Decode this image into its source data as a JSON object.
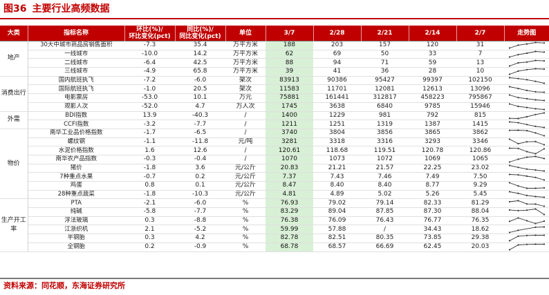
{
  "figure": {
    "number": "图36",
    "title": "主要行业高频数据"
  },
  "source": "资料来源：同花顺，东海证券研究所",
  "colors": {
    "brand_red": "#c00000",
    "highlight": "#d8f0d6",
    "spark_line": "#333333"
  },
  "headers": {
    "category": "大类",
    "name": "指标名称",
    "mom": [
      "环比(%)/",
      "环比变化(pct)"
    ],
    "yoy": [
      "同比(%)/",
      "同比变化(pct)"
    ],
    "unit": "单位",
    "dates": [
      "3/7",
      "2/28",
      "2/21",
      "2/14",
      "2/7"
    ],
    "trend": "走势图"
  },
  "groups": [
    {
      "category": "地产",
      "rows": [
        {
          "name": "30大中城市商品房销售面积",
          "mom": "-7.3",
          "yoy": "35.4",
          "unit": "万平方米",
          "values": [
            "188",
            "203",
            "157",
            "120",
            "31"
          ],
          "hl": [
            true,
            false,
            false,
            false,
            false
          ],
          "trend": [
            31,
            120,
            157,
            203,
            188
          ]
        },
        {
          "name": "一线城市",
          "mom": "-10.0",
          "yoy": "14.2",
          "unit": "万平方米",
          "values": [
            "62",
            "69",
            "50",
            "33",
            "7"
          ],
          "hl": [
            true,
            false,
            false,
            false,
            false
          ],
          "trend": [
            7,
            33,
            50,
            69,
            62
          ]
        },
        {
          "name": "二线城市",
          "mom": "-6.4",
          "yoy": "42.5",
          "unit": "万平方米",
          "values": [
            "88",
            "94",
            "71",
            "59",
            "13"
          ],
          "hl": [
            true,
            false,
            false,
            false,
            false
          ],
          "trend": [
            13,
            59,
            71,
            94,
            88
          ]
        },
        {
          "name": "三线城市",
          "mom": "-4.9",
          "yoy": "65.8",
          "unit": "万平方米",
          "values": [
            "39",
            "41",
            "36",
            "28",
            "10"
          ],
          "hl": [
            true,
            false,
            false,
            false,
            false
          ],
          "trend": [
            10,
            28,
            36,
            41,
            39
          ]
        }
      ]
    },
    {
      "category": "消费出行",
      "rows": [
        {
          "name": "国内航班执飞",
          "mom": "-7.2",
          "yoy": "-6.0",
          "unit": "架次",
          "values": [
            "83913",
            "90386",
            "95427",
            "99397",
            "102150"
          ],
          "hl": [
            true,
            false,
            false,
            false,
            false
          ],
          "trend": [
            102150,
            99397,
            95427,
            90386,
            83913
          ]
        },
        {
          "name": "国际航班执飞",
          "mom": "-1.0",
          "yoy": "20.5",
          "unit": "架次",
          "values": [
            "11583",
            "11701",
            "12081",
            "12613",
            "13096"
          ],
          "hl": [
            true,
            false,
            false,
            false,
            false
          ],
          "trend": [
            13096,
            12613,
            12081,
            11701,
            11583
          ]
        },
        {
          "name": "电影票房",
          "mom": "-53.0",
          "yoy": "10.1",
          "unit": "万元",
          "values": [
            "75881",
            "161441",
            "312817",
            "458223",
            "795867"
          ],
          "hl": [
            true,
            false,
            false,
            false,
            false
          ],
          "trend": [
            795867,
            458223,
            312817,
            161441,
            75881
          ]
        },
        {
          "name": "观影人次",
          "mom": "-52.0",
          "yoy": "4.7",
          "unit": "万人次",
          "values": [
            "1745",
            "3638",
            "6840",
            "9785",
            "15946"
          ],
          "hl": [
            true,
            false,
            false,
            false,
            false
          ],
          "trend": [
            15946,
            9785,
            6840,
            3638,
            1745
          ]
        }
      ]
    },
    {
      "category": "外需",
      "rows": [
        {
          "name": "BDI指数",
          "mom": "13.9",
          "yoy": "-40.3",
          "unit": "/",
          "values": [
            "1400",
            "1229",
            "981",
            "792",
            "815"
          ],
          "hl": [
            true,
            false,
            false,
            false,
            false
          ],
          "trend": [
            815,
            792,
            981,
            1229,
            1400
          ]
        },
        {
          "name": "CCFI指数",
          "mom": "-3.2",
          "yoy": "-7.7",
          "unit": "/",
          "values": [
            "1211",
            "1251",
            "1319",
            "1387",
            "1415"
          ],
          "hl": [
            true,
            false,
            false,
            false,
            false
          ],
          "trend": [
            1415,
            1387,
            1319,
            1251,
            1211
          ]
        }
      ]
    },
    {
      "category": "物价",
      "rows": [
        {
          "name": "南华工业品价格指数",
          "mom": "-1.7",
          "yoy": "-6.5",
          "unit": "/",
          "values": [
            "3740",
            "3804",
            "3856",
            "3865",
            "3862"
          ],
          "hl": [
            true,
            false,
            false,
            false,
            false
          ],
          "trend": [
            3862,
            3865,
            3856,
            3804,
            3740
          ]
        },
        {
          "name": "螺纹钢",
          "mom": "-1.1",
          "yoy": "-11.8",
          "unit": "元/吨",
          "values": [
            "3281",
            "3318",
            "3316",
            "3293",
            "3346"
          ],
          "hl": [
            true,
            false,
            false,
            false,
            false
          ],
          "trend": [
            3346,
            3293,
            3316,
            3318,
            3281
          ]
        },
        {
          "name": "水泥价格指数",
          "mom": "1.6",
          "yoy": "12.6",
          "unit": "/",
          "values": [
            "120.61",
            "118.68",
            "119.51",
            "120.78",
            "120.86"
          ],
          "hl": [
            true,
            false,
            false,
            false,
            false
          ],
          "trend": [
            120.86,
            120.78,
            119.51,
            118.68,
            120.61
          ]
        },
        {
          "name": "南华农产品指数",
          "mom": "-0.3",
          "yoy": "-0.4",
          "unit": "/",
          "values": [
            "1070",
            "1073",
            "1072",
            "1069",
            "1065"
          ],
          "hl": [
            true,
            false,
            false,
            false,
            false
          ],
          "trend": [
            1065,
            1069,
            1072,
            1073,
            1070
          ]
        },
        {
          "name": "猪价",
          "mom": "-1.8",
          "yoy": "3.6",
          "unit": "元/公斤",
          "values": [
            "20.83",
            "21.21",
            "21.57",
            "22.25",
            "23.02"
          ],
          "hl": [
            true,
            false,
            false,
            false,
            false
          ],
          "trend": [
            23.02,
            22.25,
            21.57,
            21.21,
            20.83
          ]
        },
        {
          "name": "7种重点水果",
          "mom": "-0.7",
          "yoy": "0.2",
          "unit": "元/公斤",
          "values": [
            "7.37",
            "7.43",
            "7.46",
            "7.49",
            "7.50"
          ],
          "hl": [
            true,
            false,
            false,
            false,
            false
          ],
          "trend": [
            7.5,
            7.49,
            7.46,
            7.43,
            7.37
          ]
        },
        {
          "name": "鸡蛋",
          "mom": "0.8",
          "yoy": "0.1",
          "unit": "元/公斤",
          "values": [
            "8.47",
            "8.40",
            "8.40",
            "8.77",
            "9.29"
          ],
          "hl": [
            true,
            false,
            false,
            false,
            false
          ],
          "trend": [
            9.29,
            8.77,
            8.4,
            8.4,
            8.47
          ]
        },
        {
          "name": "28种重点蔬菜",
          "mom": "-1.8",
          "yoy": "-10.3",
          "unit": "元/公斤",
          "values": [
            "4.81",
            "4.89",
            "5.02",
            "5.26",
            "5.45"
          ],
          "hl": [
            true,
            false,
            false,
            false,
            false
          ],
          "trend": [
            5.45,
            5.26,
            5.02,
            4.89,
            4.81
          ]
        }
      ]
    },
    {
      "category": "生产开工率",
      "rows": [
        {
          "name": "PTA",
          "mom": "-2.1",
          "yoy": "-6.0",
          "unit": "%",
          "values": [
            "76.93",
            "79.02",
            "79.14",
            "82.33",
            "81.29"
          ],
          "hl": [
            true,
            false,
            false,
            false,
            false
          ],
          "trend": [
            81.29,
            82.33,
            79.14,
            79.02,
            76.93
          ]
        },
        {
          "name": "纯碱",
          "mom": "-5.8",
          "yoy": "-7.7",
          "unit": "%",
          "values": [
            "83.29",
            "89.04",
            "87.85",
            "87.30",
            "88.04"
          ],
          "hl": [
            true,
            false,
            false,
            false,
            false
          ],
          "trend": [
            88.04,
            87.3,
            87.85,
            89.04,
            83.29
          ]
        },
        {
          "name": "浮法玻璃",
          "mom": "0.3",
          "yoy": "-8.8",
          "unit": "%",
          "values": [
            "76.38",
            "76.09",
            "76.43",
            "76.77",
            "76.35"
          ],
          "hl": [
            true,
            false,
            false,
            false,
            false
          ],
          "trend": [
            76.35,
            76.77,
            76.43,
            76.09,
            76.38
          ]
        },
        {
          "name": "江浙织机",
          "mom": "2.1",
          "yoy": "-5.2",
          "unit": "%",
          "values": [
            "59.99",
            "57.88",
            "/",
            "34.43",
            "18.62"
          ],
          "hl": [
            true,
            false,
            false,
            false,
            false
          ],
          "trend": [
            18.62,
            34.43,
            null,
            57.88,
            59.99
          ]
        },
        {
          "name": "半钢胎",
          "mom": "0.3",
          "yoy": "4.2",
          "unit": "%",
          "values": [
            "82.78",
            "82.51",
            "80.35",
            "73.85",
            "29.38"
          ],
          "hl": [
            true,
            false,
            false,
            false,
            false
          ],
          "trend": [
            29.38,
            73.85,
            80.35,
            82.51,
            82.78
          ]
        },
        {
          "name": "全钢胎",
          "mom": "0.2",
          "yoy": "-0.9",
          "unit": "%",
          "values": [
            "68.78",
            "68.57",
            "66.69",
            "62.45",
            "20.03"
          ],
          "hl": [
            true,
            false,
            false,
            false,
            false
          ],
          "trend": [
            20.03,
            62.45,
            66.69,
            68.57,
            68.78
          ]
        }
      ]
    }
  ]
}
